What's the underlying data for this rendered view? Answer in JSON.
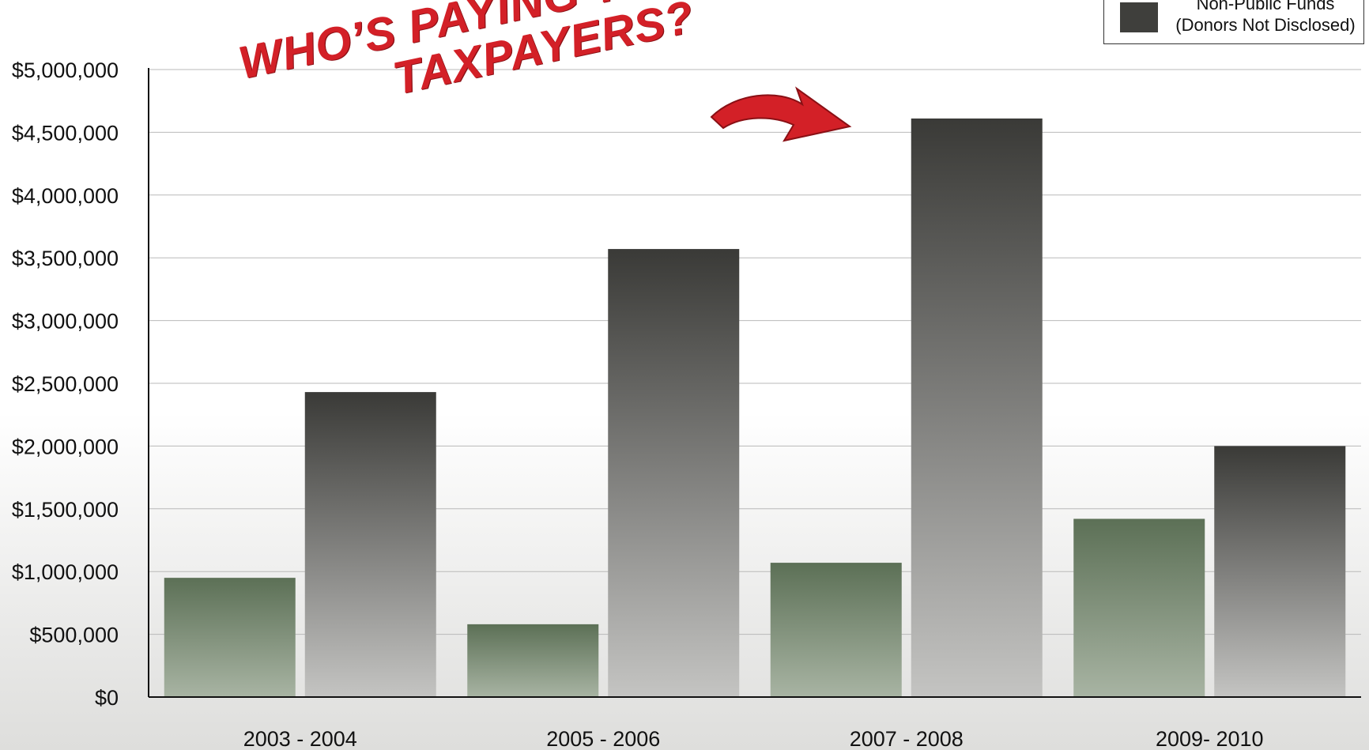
{
  "chart_data": {
    "type": "bar",
    "categories": [
      "2003 - 2004",
      "2005 - 2006",
      "2007 - 2008",
      "2009- 2010"
    ],
    "series": [
      {
        "name": "",
        "values": [
          950000,
          580000,
          1070000,
          1420000
        ],
        "color": "#5f7459"
      },
      {
        "name": "Non-Public Funds (Donors Not Disclosed)",
        "values": [
          2430000,
          3570000,
          4610000,
          2000000
        ],
        "color": "#3f3f3c"
      }
    ],
    "ylim": [
      0,
      5000000
    ],
    "yticks": [
      "$0",
      "$500,000",
      "$1,000,000",
      "$1,500,000",
      "$2,000,000",
      "$2,500,000",
      "$3,000,000",
      "$3,500,000",
      "$4,000,000",
      "$4,500,000",
      "$5,000,000"
    ],
    "grid": true,
    "legend": {
      "placement": "top-right",
      "entries": [
        {
          "line1": "Non-Public Funds",
          "line2": "(Donors Not Disclosed)",
          "color": "#3f3f3c"
        }
      ]
    },
    "annotation": {
      "line1": "WHO’S PAYING THE BILL?",
      "line2": "TAXPAYERS?",
      "color": "#d32027"
    }
  }
}
